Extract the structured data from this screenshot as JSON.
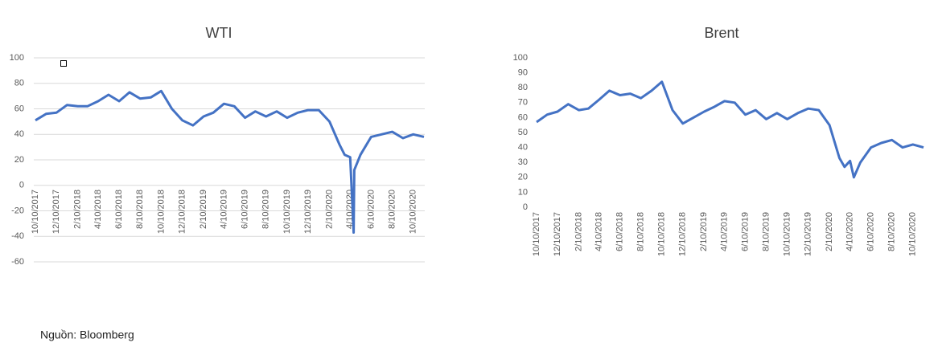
{
  "chart_data": [
    {
      "type": "line",
      "title": "WTI",
      "color": "#4472c4",
      "grid": true,
      "ylim": [
        -60,
        100
      ],
      "yticks": [
        -60,
        -40,
        -20,
        0,
        20,
        40,
        60,
        80,
        100
      ],
      "xlim": [
        "10/10/2017",
        "11/10/2020"
      ],
      "xticks": [
        "10/10/2017",
        "12/10/2017",
        "2/10/2018",
        "4/10/2018",
        "6/10/2018",
        "8/10/2018",
        "10/10/2018",
        "12/10/2018",
        "2/10/2019",
        "4/10/2019",
        "6/10/2019",
        "8/10/2019",
        "10/10/2019",
        "12/10/2019",
        "2/10/2020",
        "4/10/2020",
        "6/10/2020",
        "8/10/2020",
        "10/10/2020"
      ],
      "x": [
        "10/10/2017",
        "11/10/2017",
        "12/10/2017",
        "1/10/2018",
        "2/10/2018",
        "3/10/2018",
        "4/10/2018",
        "5/10/2018",
        "6/10/2018",
        "7/10/2018",
        "8/10/2018",
        "9/10/2018",
        "10/10/2018",
        "11/10/2018",
        "12/10/2018",
        "1/10/2019",
        "2/10/2019",
        "3/10/2019",
        "4/10/2019",
        "5/10/2019",
        "6/10/2019",
        "7/10/2019",
        "8/10/2019",
        "9/10/2019",
        "10/10/2019",
        "11/10/2019",
        "12/10/2019",
        "1/10/2020",
        "2/10/2020",
        "3/10/2020",
        "3/25/2020",
        "4/10/2020",
        "4/20/2020",
        "4/22/2020",
        "5/10/2020",
        "6/10/2020",
        "7/10/2020",
        "8/10/2020",
        "9/10/2020",
        "10/10/2020",
        "11/10/2020"
      ],
      "values": [
        51,
        56,
        57,
        63,
        62,
        62,
        66,
        71,
        66,
        73,
        68,
        69,
        74,
        60,
        51,
        47,
        54,
        57,
        64,
        62,
        53,
        58,
        54,
        58,
        53,
        57,
        59,
        59,
        50,
        32,
        24,
        22,
        -37,
        12,
        24,
        38,
        40,
        42,
        37,
        40,
        38
      ]
    },
    {
      "type": "line",
      "title": "Brent",
      "color": "#4472c4",
      "grid": false,
      "ylim": [
        0,
        100
      ],
      "yticks": [
        0,
        10,
        20,
        30,
        40,
        50,
        60,
        70,
        80,
        90,
        100
      ],
      "xlim": [
        "10/10/2017",
        "11/10/2020"
      ],
      "xticks": [
        "10/10/2017",
        "12/10/2017",
        "2/10/2018",
        "4/10/2018",
        "6/10/2018",
        "8/10/2018",
        "10/10/2018",
        "12/10/2018",
        "2/10/2019",
        "4/10/2019",
        "6/10/2019",
        "8/10/2019",
        "10/10/2019",
        "12/10/2019",
        "2/10/2020",
        "4/10/2020",
        "6/10/2020",
        "8/10/2020",
        "10/10/2020"
      ],
      "x": [
        "10/10/2017",
        "11/10/2017",
        "12/10/2017",
        "1/10/2018",
        "2/10/2018",
        "3/10/2018",
        "4/10/2018",
        "5/10/2018",
        "6/10/2018",
        "7/10/2018",
        "8/10/2018",
        "9/10/2018",
        "10/10/2018",
        "11/10/2018",
        "12/10/2018",
        "1/10/2019",
        "2/10/2019",
        "3/10/2019",
        "4/10/2019",
        "5/10/2019",
        "6/10/2019",
        "7/10/2019",
        "8/10/2019",
        "9/10/2019",
        "10/10/2019",
        "11/10/2019",
        "12/10/2019",
        "1/10/2020",
        "2/10/2020",
        "3/10/2020",
        "3/25/2020",
        "4/10/2020",
        "4/21/2020",
        "5/10/2020",
        "6/10/2020",
        "7/10/2020",
        "8/10/2020",
        "9/10/2020",
        "10/10/2020",
        "11/10/2020"
      ],
      "values": [
        57,
        62,
        64,
        69,
        65,
        66,
        72,
        78,
        75,
        76,
        73,
        78,
        84,
        65,
        56,
        60,
        64,
        67,
        71,
        70,
        62,
        65,
        59,
        63,
        59,
        63,
        66,
        65,
        55,
        33,
        27,
        31,
        20,
        30,
        40,
        43,
        45,
        40,
        42,
        40
      ]
    }
  ],
  "source": "Nguồn: Bloomberg"
}
